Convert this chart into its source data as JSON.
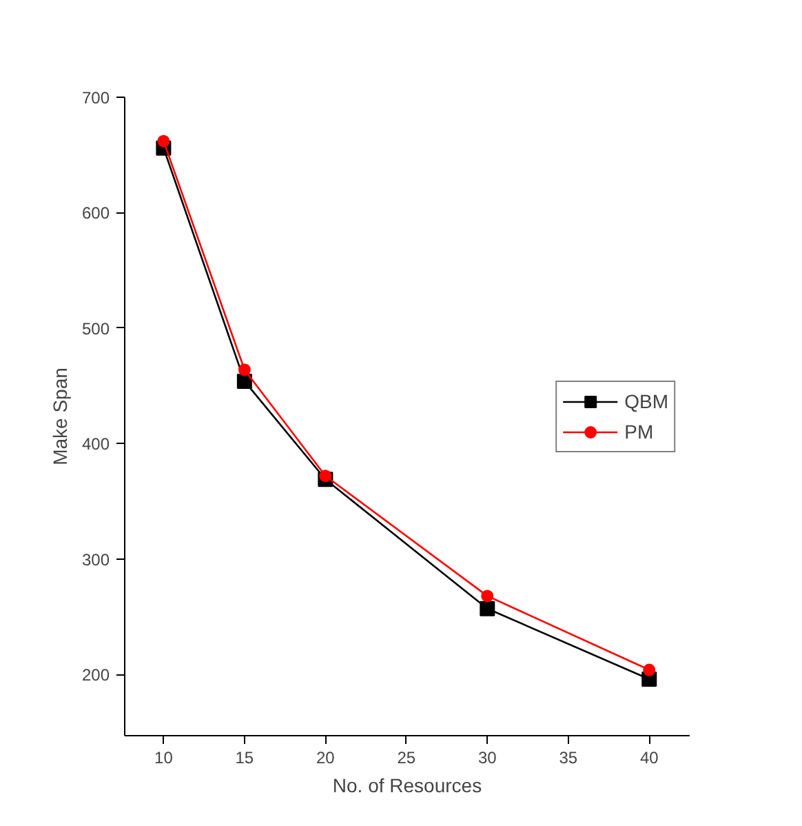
{
  "chart_data": {
    "type": "line",
    "xlabel": "No. of Resources",
    "ylabel": "Make Span",
    "x": [
      10,
      15,
      20,
      30,
      40
    ],
    "series": [
      {
        "name": "QBM",
        "color": "#000000",
        "marker": "square",
        "values": [
          656,
          454,
          369,
          257,
          196
        ]
      },
      {
        "name": "PM",
        "color": "#ff0000",
        "marker": "circle",
        "values": [
          662,
          464,
          372,
          268,
          204
        ]
      }
    ],
    "xlim": [
      7.6,
      42.5
    ],
    "xticks": [
      10,
      15,
      20,
      25,
      30,
      35,
      40
    ],
    "ylim": [
      147,
      700
    ],
    "yticks": [
      200,
      300,
      400,
      500,
      600,
      700
    ],
    "grid": false,
    "legend": "right",
    "line_style": "solid"
  }
}
